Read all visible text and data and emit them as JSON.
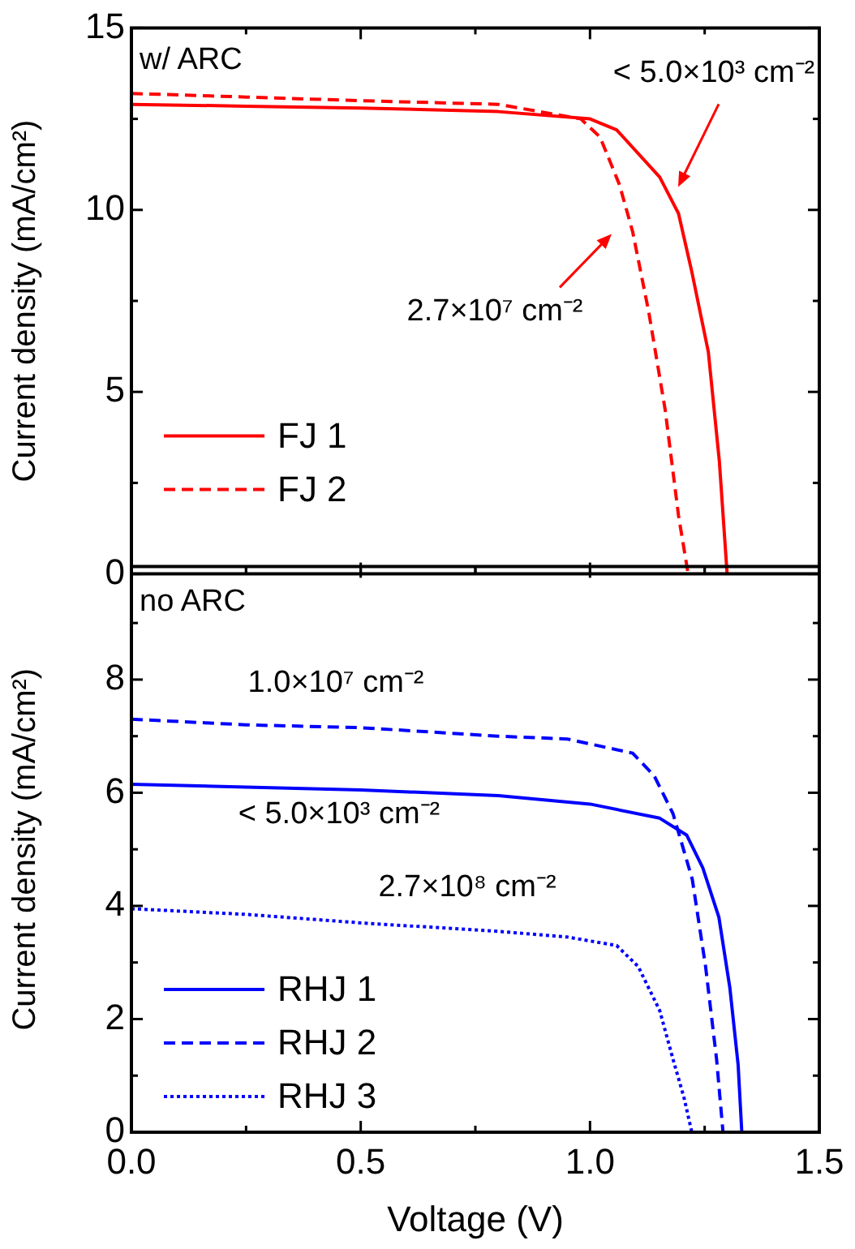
{
  "chart_data": [
    {
      "type": "line",
      "ylabel": "Current density (mA/cm²)",
      "xlim": [
        0,
        1.5
      ],
      "xticks": [
        0,
        0.5,
        1,
        1.5
      ],
      "ylim": [
        0,
        15
      ],
      "yticks": [
        0,
        5,
        10,
        15
      ],
      "tick_labels": "y",
      "grid": false,
      "legend": "bottom left",
      "series": [
        {
          "name": "FJ 1",
          "color": "#ff0000",
          "line_style": "solid",
          "x": [
            0,
            0.25,
            0.5,
            0.8,
            1.0,
            1.058,
            1.152,
            1.193,
            1.222,
            1.258,
            1.282,
            1.299
          ],
          "values": [
            12.9,
            12.85,
            12.8,
            12.7,
            12.5,
            12.2,
            10.9,
            9.9,
            8.3,
            6.1,
            3.1,
            0
          ]
        },
        {
          "name": "FJ 2",
          "color": "#ff0000",
          "line_style": "dashed",
          "x": [
            0,
            0.25,
            0.5,
            0.8,
            0.98,
            1.022,
            1.064,
            1.093,
            1.128,
            1.164,
            1.193,
            1.214
          ],
          "values": [
            13.2,
            13.1,
            13.0,
            12.9,
            12.5,
            12.0,
            10.7,
            9.4,
            7.2,
            4.5,
            1.6,
            0
          ]
        }
      ],
      "annotations": [
        "w/ ARC",
        "< 5.0×10³ cm⁻²",
        "2.7×10⁷ cm⁻²"
      ]
    },
    {
      "type": "line",
      "ylabel": "Current density (mA/cm²)",
      "xlabel": "Voltage (V)",
      "xlim": [
        0,
        1.5
      ],
      "xticks": [
        {
          "value": 0,
          "label": "0.0"
        },
        {
          "value": 0.5,
          "label": "0.5"
        },
        {
          "value": 1,
          "label": "1.0"
        },
        {
          "value": 1.5,
          "label": "1.5"
        }
      ],
      "ylim": [
        0,
        10
      ],
      "yticks": [
        0,
        2,
        4,
        6,
        8
      ],
      "grid": false,
      "legend": "bottom left",
      "series": [
        {
          "name": "RHJ 1",
          "color": "#0000ff",
          "line_style": "solid",
          "x": [
            0,
            0.25,
            0.5,
            0.8,
            1.0,
            1.152,
            1.211,
            1.246,
            1.281,
            1.305,
            1.323,
            1.331
          ],
          "values": [
            6.15,
            6.1,
            6.05,
            5.95,
            5.8,
            5.55,
            5.25,
            4.67,
            3.8,
            2.55,
            1.19,
            0
          ]
        },
        {
          "name": "RHJ 2",
          "color": "#0000ff",
          "line_style": "dashed",
          "x": [
            0,
            0.25,
            0.5,
            0.8,
            0.95,
            1.093,
            1.14,
            1.181,
            1.223,
            1.252,
            1.276,
            1.29
          ],
          "values": [
            7.3,
            7.2,
            7.15,
            7.0,
            6.95,
            6.7,
            6.3,
            5.63,
            4.47,
            2.93,
            1.29,
            0
          ]
        },
        {
          "name": "RHJ 3",
          "color": "#0000ff",
          "line_style": "dotted",
          "x": [
            0,
            0.25,
            0.5,
            0.8,
            0.95,
            1.058,
            1.105,
            1.152,
            1.181,
            1.205,
            1.222
          ],
          "values": [
            3.95,
            3.85,
            3.7,
            3.55,
            3.45,
            3.3,
            2.93,
            2.15,
            1.29,
            0.61,
            0
          ]
        }
      ],
      "annotations": [
        "no ARC",
        "1.0×10⁷ cm⁻²",
        "< 5.0×10³ cm⁻²",
        "2.7×10⁸ cm⁻²"
      ]
    }
  ]
}
